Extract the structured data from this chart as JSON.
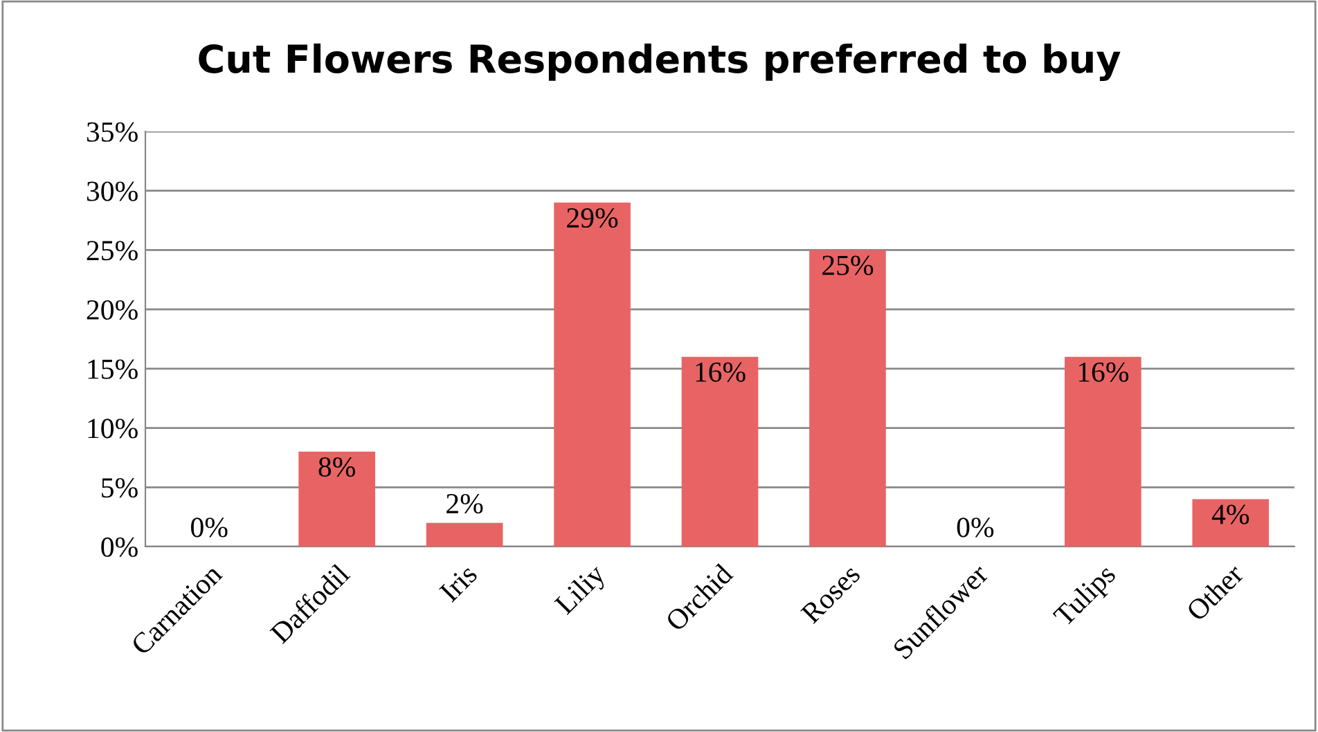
{
  "chart_data": {
    "type": "bar",
    "title": "Cut Flowers Respondents preferred to buy",
    "categories": [
      "Carnation",
      "Daffodil",
      "Iris",
      "Liliy",
      "Orchid",
      "Roses",
      "Sunflower",
      "Tulips",
      "Other"
    ],
    "values": [
      0,
      8,
      2,
      29,
      16,
      25,
      0,
      16,
      4
    ],
    "value_labels": [
      "0%",
      "8%",
      "2%",
      "29%",
      "16%",
      "25%",
      "0%",
      "16%",
      "4%"
    ],
    "color": "#e86464",
    "ylim": [
      0,
      35
    ],
    "yticks": [
      {
        "value": 0,
        "label": "0%"
      },
      {
        "value": 5,
        "label": "5%"
      },
      {
        "value": 10,
        "label": "10%"
      },
      {
        "value": 15,
        "label": "15%"
      },
      {
        "value": 20,
        "label": "20%"
      },
      {
        "value": 25,
        "label": "25%"
      },
      {
        "value": 30,
        "label": "30%"
      },
      {
        "value": 35,
        "label": "35%"
      }
    ],
    "grid": "y",
    "legend": false
  }
}
